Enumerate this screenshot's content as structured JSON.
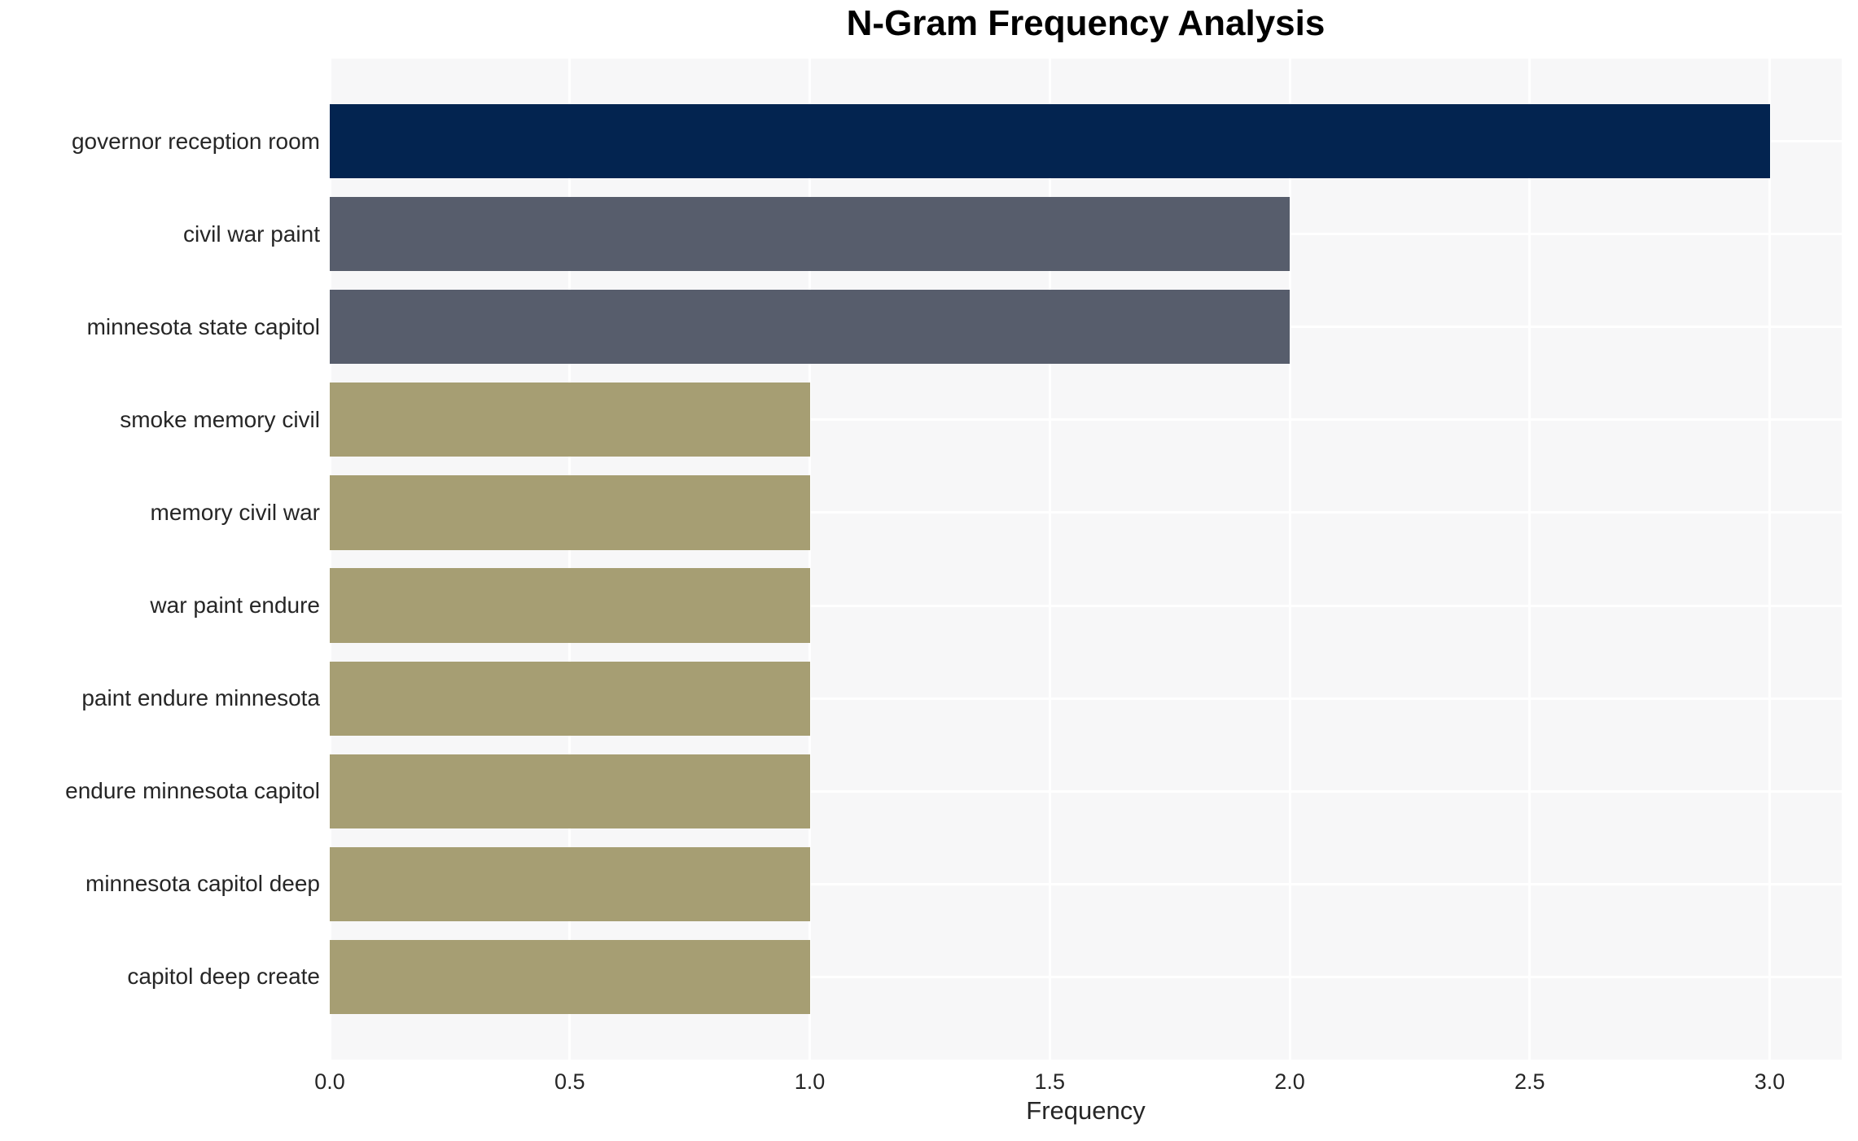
{
  "chart_data": {
    "type": "bar",
    "orientation": "horizontal",
    "title": "N-Gram Frequency Analysis",
    "xlabel": "Frequency",
    "ylabel": "",
    "categories": [
      "governor reception room",
      "civil war paint",
      "minnesota state capitol",
      "smoke memory civil",
      "memory civil war",
      "war paint endure",
      "paint endure minnesota",
      "endure minnesota capitol",
      "minnesota capitol deep",
      "capitol deep create"
    ],
    "values": [
      3,
      2,
      2,
      1,
      1,
      1,
      1,
      1,
      1,
      1
    ],
    "bar_colors": [
      "#032450",
      "#575d6c",
      "#575d6c",
      "#a69e73",
      "#a69e73",
      "#a69e73",
      "#a69e73",
      "#a69e73",
      "#a69e73",
      "#a69e73"
    ],
    "xticks": [
      "0.0",
      "0.5",
      "1.0",
      "1.5",
      "2.0",
      "2.5",
      "3.0"
    ],
    "xtick_values": [
      0,
      0.5,
      1,
      1.5,
      2,
      2.5,
      3
    ],
    "xlim": [
      0,
      3.15
    ],
    "grid": true,
    "legend": false,
    "colors": {
      "top_bar": "#032450",
      "second_bars": "#575d6c",
      "base_bars": "#a69e73",
      "plot_background": "#f7f7f8",
      "gridline": "#ffffff",
      "tick_text": "#262626",
      "title_text": "#000000"
    }
  }
}
